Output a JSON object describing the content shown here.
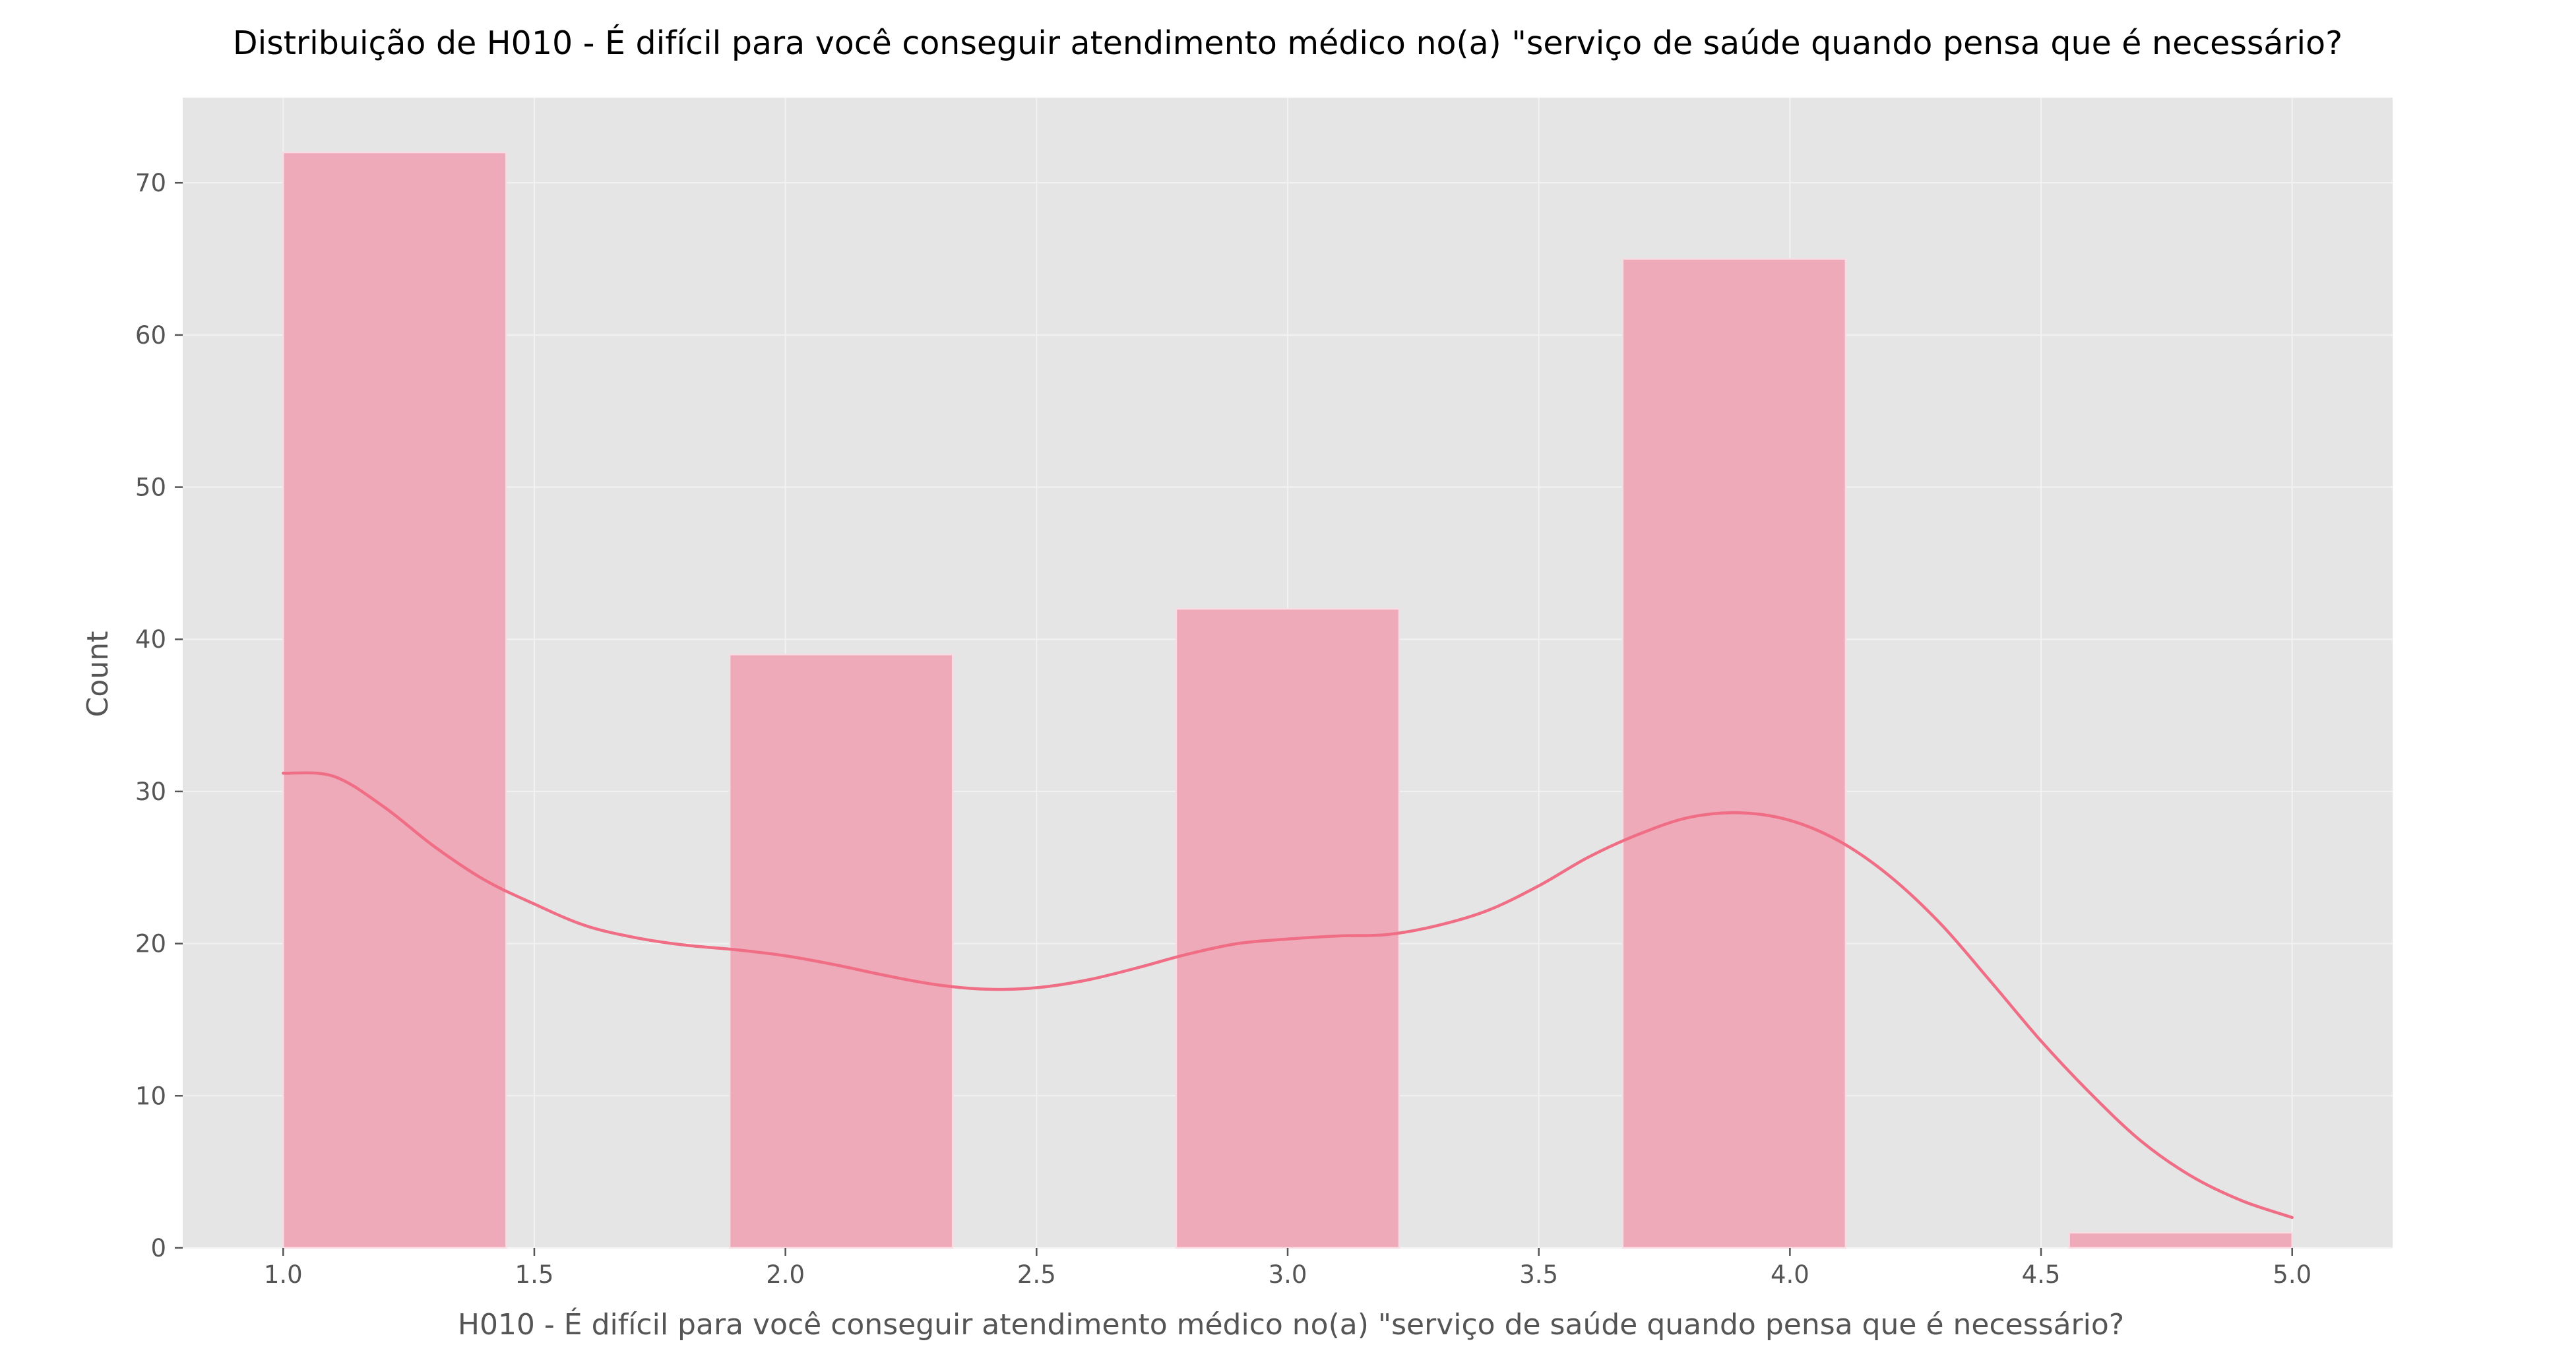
{
  "chart_data": {
    "type": "bar",
    "title": "Distribuição de H010 - É difícil para você conseguir atendimento médico no(a) \"serviço de saúde quando pensa que é necessário?",
    "xlabel": "H010 - É difícil para você conseguir atendimento médico no(a) \"serviço de saúde quando pensa que é necessário?",
    "ylabel": "Count",
    "xlim": [
      0.8,
      5.2
    ],
    "ylim": [
      0,
      75.6
    ],
    "xticks": [
      "1.0",
      "1.5",
      "2.0",
      "2.5",
      "3.0",
      "3.5",
      "4.0",
      "4.5",
      "5.0"
    ],
    "yticks": [
      "0",
      "10",
      "20",
      "30",
      "40",
      "50",
      "60",
      "70"
    ],
    "bins": [
      {
        "x0": 1.0,
        "x1": 1.444,
        "count": 72
      },
      {
        "x0": 1.889,
        "x1": 2.333,
        "count": 39
      },
      {
        "x0": 2.778,
        "x1": 3.222,
        "count": 42
      },
      {
        "x0": 3.667,
        "x1": 4.111,
        "count": 65
      },
      {
        "x0": 4.556,
        "x1": 5.0,
        "count": 1
      }
    ],
    "kde": {
      "x": [
        1.0,
        1.1,
        1.2,
        1.3,
        1.4,
        1.5,
        1.6,
        1.7,
        1.8,
        1.9,
        2.0,
        2.1,
        2.2,
        2.3,
        2.4,
        2.5,
        2.6,
        2.7,
        2.8,
        2.9,
        3.0,
        3.1,
        3.2,
        3.3,
        3.4,
        3.5,
        3.6,
        3.7,
        3.8,
        3.9,
        4.0,
        4.1,
        4.2,
        4.3,
        4.4,
        4.5,
        4.6,
        4.7,
        4.8,
        4.9,
        5.0
      ],
      "y": [
        31.2,
        31.0,
        29.0,
        26.4,
        24.2,
        22.6,
        21.2,
        20.4,
        19.9,
        19.6,
        19.2,
        18.6,
        17.9,
        17.3,
        17.0,
        17.1,
        17.6,
        18.4,
        19.3,
        20.0,
        20.3,
        20.5,
        20.6,
        21.2,
        22.2,
        23.8,
        25.7,
        27.2,
        28.3,
        28.6,
        28.1,
        26.7,
        24.4,
        21.3,
        17.5,
        13.6,
        10.1,
        7.0,
        4.7,
        3.1,
        2.0
      ]
    },
    "colors": {
      "bar_fill": "#eeaab9",
      "bar_edge": "#f7dde3",
      "kde_line": "#f06e85",
      "plot_background": "#e5e5e5",
      "grid": "#f2f2f2"
    },
    "grid": true,
    "legend": "none"
  }
}
